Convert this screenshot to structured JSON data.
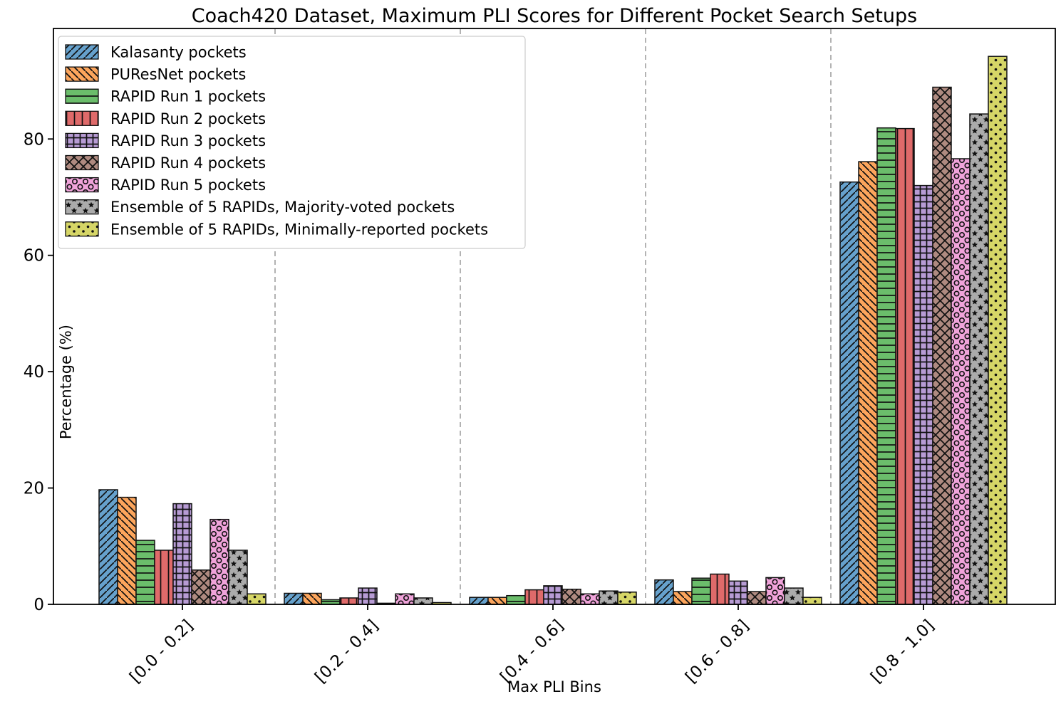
{
  "chart_data": {
    "type": "bar",
    "title": "Coach420 Dataset, Maximum PLI Scores for Different Pocket Search Setups",
    "xlabel": "Max PLI Bins",
    "ylabel": "Percentage (%)",
    "categories": [
      "[0.0 - 0.2]",
      "[0.2 - 0.4]",
      "[0.4 - 0.6]",
      "[0.6 - 0.8]",
      "[0.8 - 1.0]"
    ],
    "yticks": [
      0,
      20,
      40,
      60,
      80
    ],
    "ylim": [
      0,
      99
    ],
    "grid": {
      "vertical_separators_between_bins": true,
      "style": "dashed",
      "color": "#8a8a8a"
    },
    "legend_position": "upper left",
    "bar_edge_color": "#111111",
    "series": [
      {
        "name": "Kalasanty pockets",
        "color": "#66A1CC",
        "hatch": "/",
        "values": [
          19.7,
          1.9,
          1.2,
          4.2,
          72.6
        ]
      },
      {
        "name": "PUResNet pockets",
        "color": "#FCA55C",
        "hatch": "\\",
        "values": [
          18.4,
          1.9,
          1.2,
          2.2,
          76.1
        ]
      },
      {
        "name": "RAPID Run 1 pockets",
        "color": "#6BBD6B",
        "hatch": "-",
        "values": [
          11.0,
          0.8,
          1.5,
          4.5,
          81.9
        ]
      },
      {
        "name": "RAPID Run 2 pockets",
        "color": "#DF6A6A",
        "hatch": "|",
        "values": [
          9.3,
          1.1,
          2.5,
          5.2,
          81.8
        ]
      },
      {
        "name": "RAPID Run 3 pockets",
        "color": "#B79BD4",
        "hatch": "+",
        "values": [
          17.3,
          2.8,
          3.2,
          4.0,
          72.0
        ]
      },
      {
        "name": "RAPID Run 4 pockets",
        "color": "#AF8A80",
        "hatch": "x",
        "values": [
          5.9,
          0.2,
          2.6,
          2.2,
          88.9
        ]
      },
      {
        "name": "RAPID Run 5 pockets",
        "color": "#F0A3DA",
        "hatch": "o",
        "values": [
          14.6,
          1.8,
          1.8,
          4.6,
          76.6
        ]
      },
      {
        "name": "Ensemble of 5 RAPIDs, Majority-voted pockets",
        "color": "#ABABAB",
        "hatch": "*",
        "values": [
          9.3,
          1.1,
          2.3,
          2.8,
          84.3
        ]
      },
      {
        "name": "Ensemble of 5 RAPIDs, Minimally-reported pockets",
        "color": "#D6D667",
        "hatch": ".",
        "values": [
          1.8,
          0.3,
          2.1,
          1.2,
          94.2
        ]
      }
    ]
  }
}
